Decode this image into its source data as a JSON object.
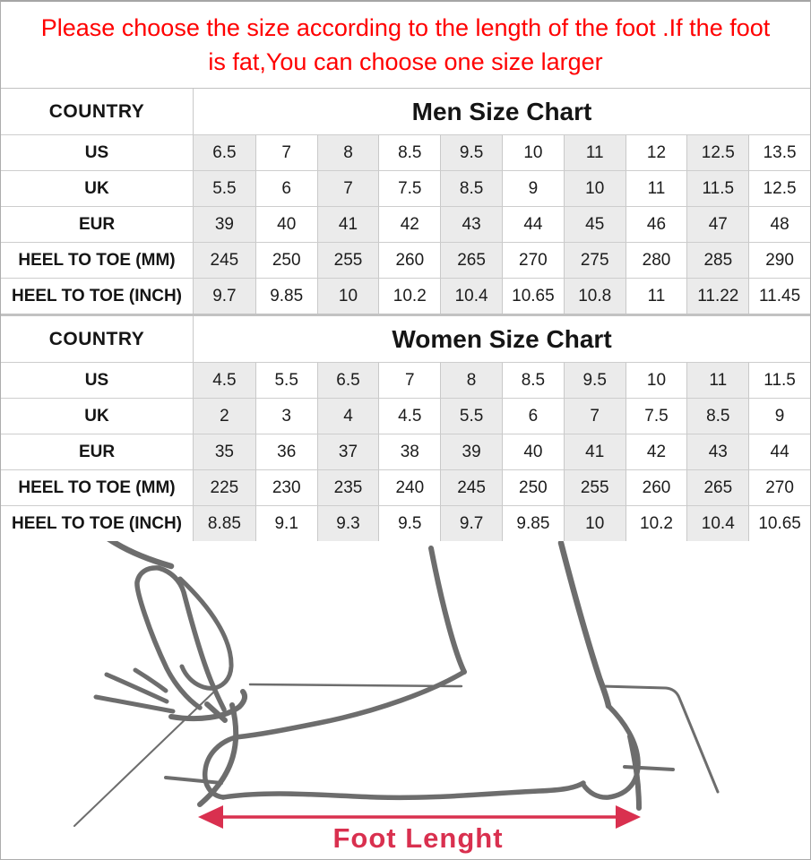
{
  "notice": {
    "line1": "Please choose the size according to the length of the foot .If the foot",
    "line2": "is fat,You can choose one size larger"
  },
  "men_table": {
    "corner_label": "COUNTRY",
    "title": "Men Size Chart",
    "rows": [
      {
        "label": "US",
        "values": [
          "6.5",
          "7",
          "8",
          "8.5",
          "9.5",
          "10",
          "11",
          "12",
          "12.5",
          "13.5"
        ]
      },
      {
        "label": "UK",
        "values": [
          "5.5",
          "6",
          "7",
          "7.5",
          "8.5",
          "9",
          "10",
          "11",
          "11.5",
          "12.5"
        ]
      },
      {
        "label": "EUR",
        "values": [
          "39",
          "40",
          "41",
          "42",
          "43",
          "44",
          "45",
          "46",
          "47",
          "48"
        ]
      },
      {
        "label": "HEEL TO TOE (MM)",
        "values": [
          "245",
          "250",
          "255",
          "260",
          "265",
          "270",
          "275",
          "280",
          "285",
          "290"
        ]
      },
      {
        "label": "HEEL TO TOE (INCH)",
        "values": [
          "9.7",
          "9.85",
          "10",
          "10.2",
          "10.4",
          "10.65",
          "10.8",
          "11",
          "11.22",
          "11.45"
        ]
      }
    ]
  },
  "women_table": {
    "corner_label": "COUNTRY",
    "title": "Women Size Chart",
    "rows": [
      {
        "label": "US",
        "values": [
          "4.5",
          "5.5",
          "6.5",
          "7",
          "8",
          "8.5",
          "9.5",
          "10",
          "11",
          "11.5"
        ]
      },
      {
        "label": "UK",
        "values": [
          "2",
          "3",
          "4",
          "4.5",
          "5.5",
          "6",
          "7",
          "7.5",
          "8.5",
          "9"
        ]
      },
      {
        "label": "EUR",
        "values": [
          "35",
          "36",
          "37",
          "38",
          "39",
          "40",
          "41",
          "42",
          "43",
          "44"
        ]
      },
      {
        "label": "HEEL TO TOE (MM)",
        "values": [
          "225",
          "230",
          "235",
          "240",
          "245",
          "250",
          "255",
          "260",
          "265",
          "270"
        ]
      },
      {
        "label": "HEEL TO TOE (INCH)",
        "values": [
          "8.85",
          "9.1",
          "9.3",
          "9.5",
          "9.7",
          "9.85",
          "10",
          "10.2",
          "10.4",
          "10.65"
        ]
      }
    ]
  },
  "diagram": {
    "arrow_label": "Foot Lenght"
  },
  "colors": {
    "notice_red": "#ff0000",
    "arrow_red": "#d9304f",
    "sketch_gray": "#6d6d6d",
    "cell_shade": "#ebebeb",
    "grid_border": "#c9c9c9"
  }
}
